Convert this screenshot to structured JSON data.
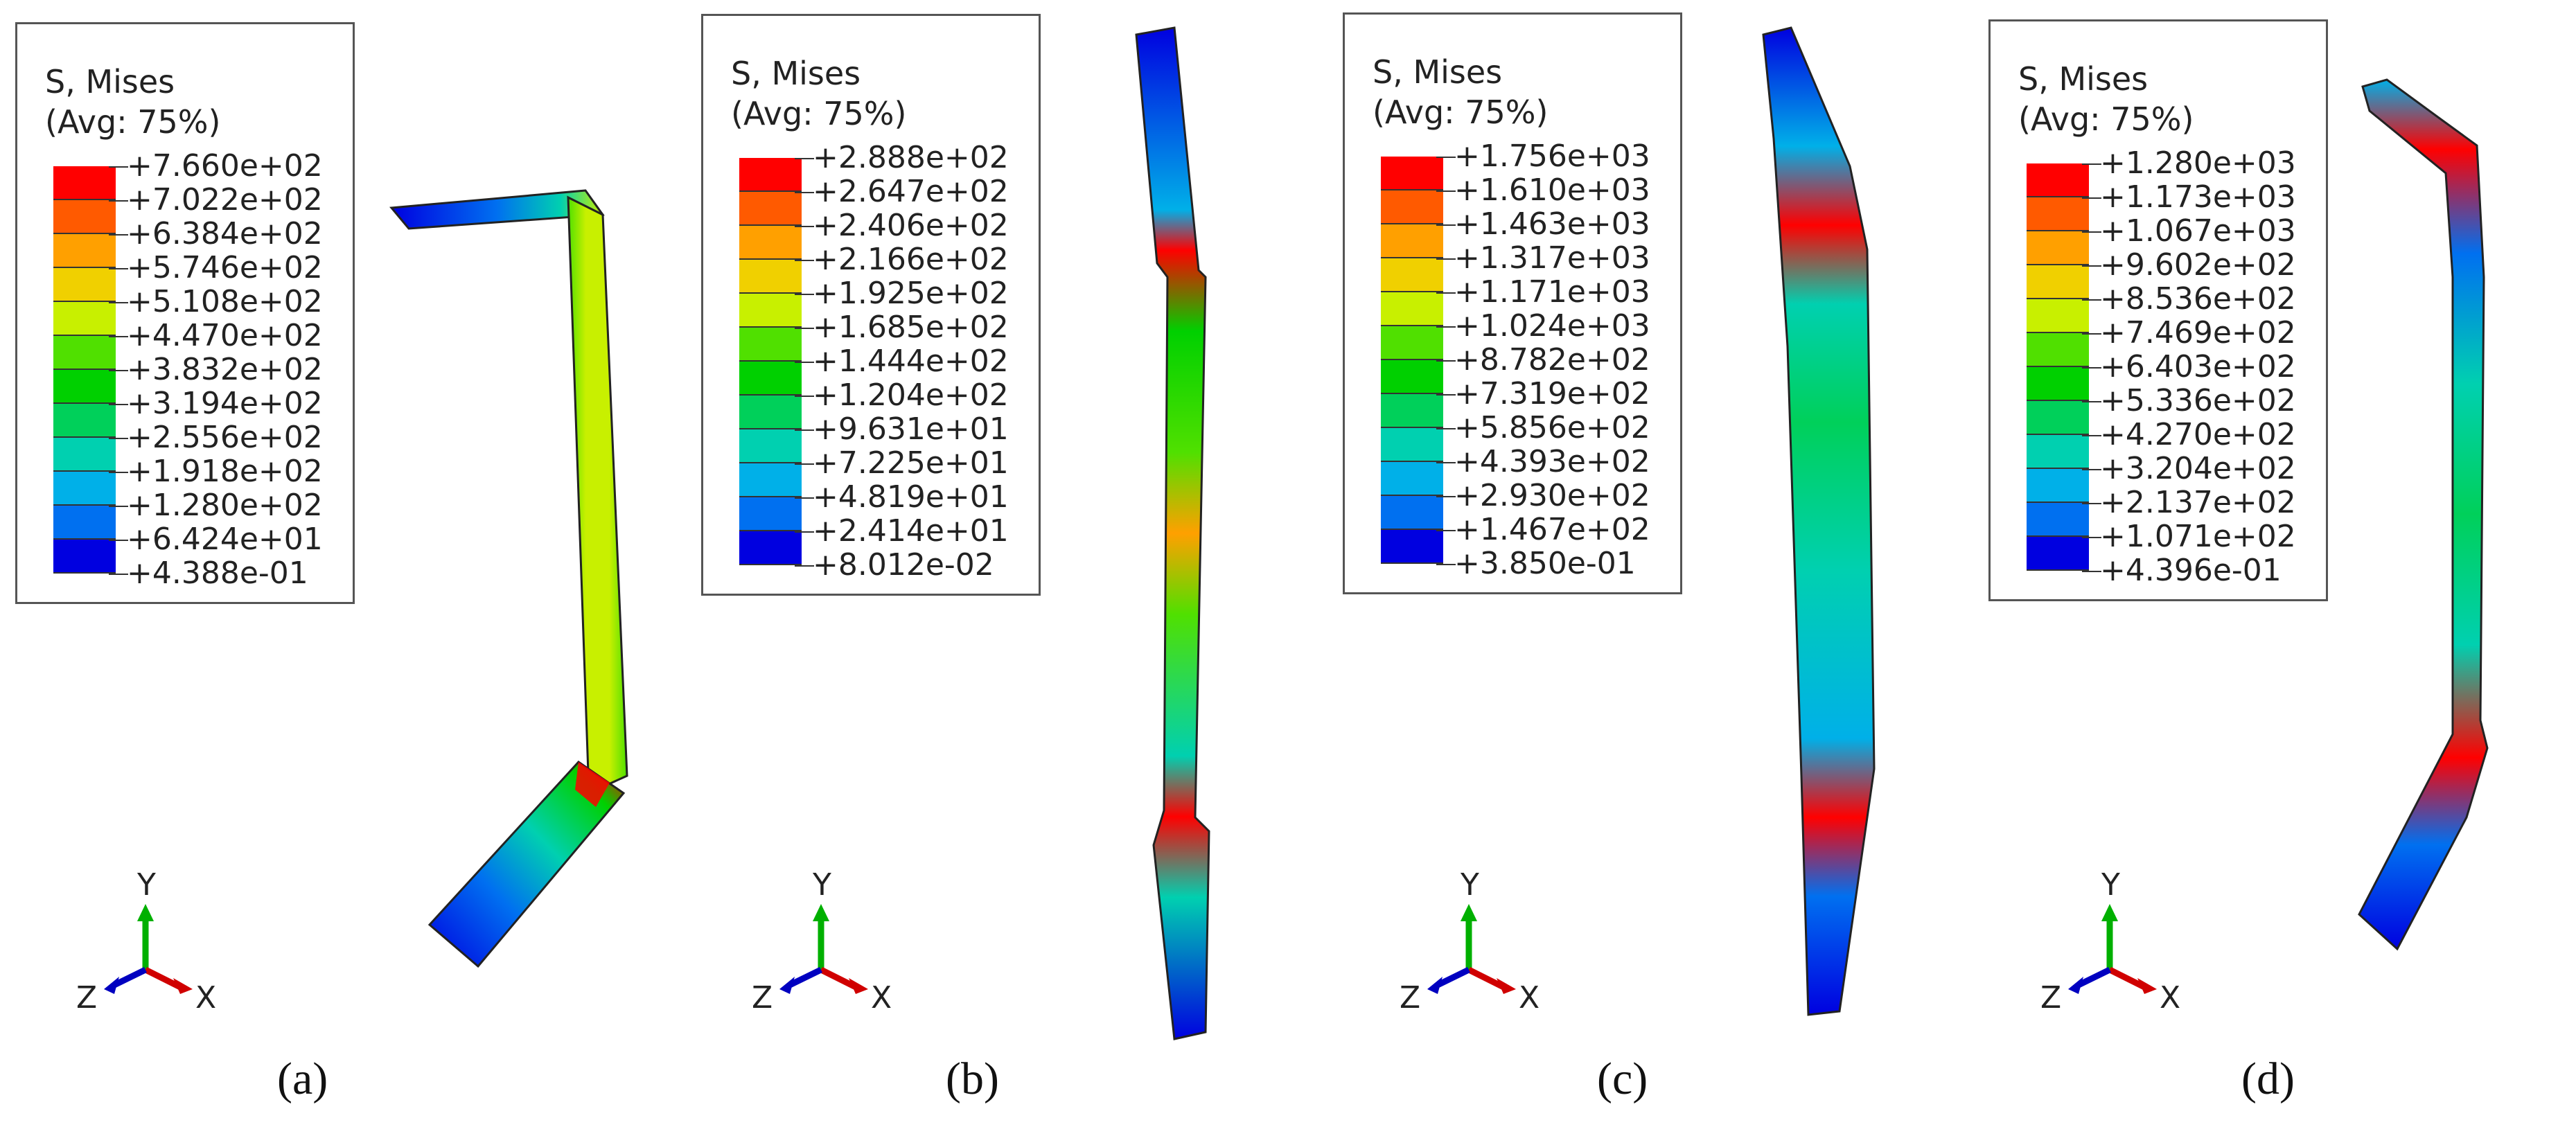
{
  "panels": [
    {
      "id": "a",
      "legend_title_1": "S, Mises",
      "legend_title_2": "(Avg: 75%)",
      "values": [
        "+7.660e+02",
        "+7.022e+02",
        "+6.384e+02",
        "+5.746e+02",
        "+5.108e+02",
        "+4.470e+02",
        "+3.832e+02",
        "+3.194e+02",
        "+2.556e+02",
        "+1.918e+02",
        "+1.280e+02",
        "+6.424e+01",
        "+4.388e-01"
      ],
      "label": "(a)"
    },
    {
      "id": "b",
      "legend_title_1": "S, Mises",
      "legend_title_2": "(Avg: 75%)",
      "values": [
        "+2.888e+02",
        "+2.647e+02",
        "+2.406e+02",
        "+2.166e+02",
        "+1.925e+02",
        "+1.685e+02",
        "+1.444e+02",
        "+1.204e+02",
        "+9.631e+01",
        "+7.225e+01",
        "+4.819e+01",
        "+2.414e+01",
        "+8.012e-02"
      ],
      "label": "(b)"
    },
    {
      "id": "c",
      "legend_title_1": "S, Mises",
      "legend_title_2": "(Avg: 75%)",
      "values": [
        "+1.756e+03",
        "+1.610e+03",
        "+1.463e+03",
        "+1.317e+03",
        "+1.171e+03",
        "+1.024e+03",
        "+8.782e+02",
        "+7.319e+02",
        "+5.856e+02",
        "+4.393e+02",
        "+2.930e+02",
        "+1.467e+02",
        "+3.850e-01"
      ],
      "label": "(c)"
    },
    {
      "id": "d",
      "legend_title_1": "S, Mises",
      "legend_title_2": "(Avg: 75%)",
      "values": [
        "+1.280e+03",
        "+1.173e+03",
        "+1.067e+03",
        "+9.602e+02",
        "+8.536e+02",
        "+7.469e+02",
        "+6.403e+02",
        "+5.336e+02",
        "+4.270e+02",
        "+3.204e+02",
        "+2.137e+02",
        "+1.071e+02",
        "+4.396e-01"
      ],
      "label": "(d)"
    }
  ],
  "axes": {
    "y": "Y",
    "x": "X",
    "z": "Z"
  },
  "colormap": [
    "#ff0000",
    "#ff5a00",
    "#ffa000",
    "#f0d000",
    "#c8f000",
    "#50e000",
    "#00d000",
    "#00d05a",
    "#00d0b0",
    "#00b0e8",
    "#0070f0",
    "#0040e8",
    "#0000e0"
  ]
}
